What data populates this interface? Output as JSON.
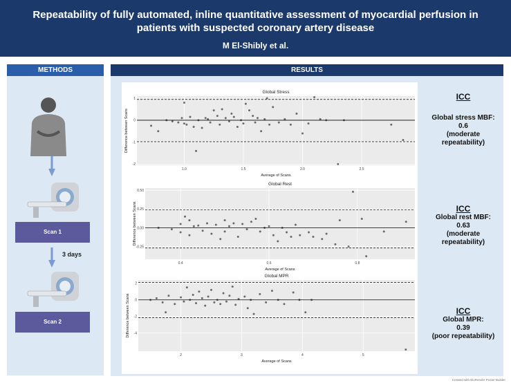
{
  "header": {
    "title": "Repeatability of fully automated, inline quantitative assessment of myocardial perfusion in patients with suspected coronary artery disease",
    "authors": "M El-Shibly et al."
  },
  "methods": {
    "heading": "METHODS",
    "scan1_label": "Scan 1",
    "interval_label": "3 days",
    "scan2_label": "Scan 2"
  },
  "results": {
    "heading": "RESULTS"
  },
  "icc": [
    {
      "heading": "ICC",
      "measure": "Global stress MBF:",
      "value": "0.6",
      "interpretation": "(moderate repeatability)"
    },
    {
      "heading": "ICC",
      "measure": "Global rest MBF:",
      "value": "0.63",
      "interpretation": "(moderate repeatability)"
    },
    {
      "heading": "ICC",
      "measure": "Global MPR:",
      "value": "0.39",
      "interpretation": "(poor repeatability)"
    }
  ],
  "chart_data": [
    {
      "type": "scatter",
      "title": "Global Stress",
      "xlabel": "Average of Scans",
      "ylabel": "Difference between Scans",
      "xlim": [
        0.6,
        2.95
      ],
      "ylim": [
        -2.05,
        1.1
      ],
      "xticks": [
        1.0,
        1.5,
        2.0,
        2.5
      ],
      "xtick_labels": [
        "1.0",
        "1.5",
        "2.0",
        "2.5"
      ],
      "yticks": [
        -2,
        -1,
        0,
        1
      ],
      "ytick_labels": [
        "-2",
        "-1",
        "0",
        "1"
      ],
      "mean_line": 0,
      "limits_of_agreement": [
        0.95,
        -0.98
      ],
      "points": [
        [
          0.72,
          -0.25
        ],
        [
          0.78,
          -0.5
        ],
        [
          0.85,
          0.0
        ],
        [
          0.9,
          -0.05
        ],
        [
          0.95,
          -0.1
        ],
        [
          0.98,
          0.1
        ],
        [
          1.0,
          0.8
        ],
        [
          1.0,
          -0.15
        ],
        [
          1.02,
          -0.2
        ],
        [
          1.05,
          0.15
        ],
        [
          1.08,
          -0.3
        ],
        [
          1.1,
          -1.4
        ],
        [
          1.12,
          0.0
        ],
        [
          1.15,
          -0.35
        ],
        [
          1.18,
          0.1
        ],
        [
          1.2,
          0.05
        ],
        [
          1.22,
          -0.1
        ],
        [
          1.25,
          0.45
        ],
        [
          1.28,
          0.2
        ],
        [
          1.3,
          -0.2
        ],
        [
          1.32,
          0.5
        ],
        [
          1.35,
          0.1
        ],
        [
          1.38,
          -0.05
        ],
        [
          1.4,
          0.3
        ],
        [
          1.42,
          0.15
        ],
        [
          1.45,
          -0.3
        ],
        [
          1.48,
          0.0
        ],
        [
          1.5,
          -0.15
        ],
        [
          1.52,
          0.75
        ],
        [
          1.55,
          0.45
        ],
        [
          1.58,
          0.2
        ],
        [
          1.6,
          -0.1
        ],
        [
          1.62,
          0.1
        ],
        [
          1.65,
          -0.5
        ],
        [
          1.68,
          0.05
        ],
        [
          1.7,
          1.0
        ],
        [
          1.72,
          -0.2
        ],
        [
          1.75,
          0.6
        ],
        [
          1.8,
          -0.1
        ],
        [
          1.85,
          0.05
        ],
        [
          1.9,
          -0.2
        ],
        [
          1.95,
          0.3
        ],
        [
          2.0,
          -0.6
        ],
        [
          2.05,
          -0.15
        ],
        [
          2.1,
          1.05
        ],
        [
          2.15,
          0.05
        ],
        [
          2.2,
          0.0
        ],
        [
          2.3,
          -2.0
        ],
        [
          2.35,
          0.0
        ],
        [
          2.75,
          -0.2
        ],
        [
          2.85,
          -0.9
        ]
      ]
    },
    {
      "type": "scatter",
      "title": "Global Rest",
      "xlabel": "Average of Scans",
      "ylabel": "Difference between Scans",
      "xlim": [
        0.32,
        0.93
      ],
      "ylim": [
        -0.42,
        0.53
      ],
      "xticks": [
        0.4,
        0.6,
        0.8
      ],
      "xtick_labels": [
        "0.4",
        "0.6",
        "0.8"
      ],
      "yticks": [
        -0.25,
        0.0,
        0.25,
        0.5
      ],
      "ytick_labels": [
        "-0.25",
        "0.00",
        "0.25",
        "0.50"
      ],
      "mean_line": 0,
      "limits_of_agreement": [
        0.24,
        -0.27
      ],
      "points": [
        [
          0.35,
          0.0
        ],
        [
          0.38,
          -0.02
        ],
        [
          0.4,
          0.05
        ],
        [
          0.4,
          -0.06
        ],
        [
          0.41,
          0.15
        ],
        [
          0.42,
          0.1
        ],
        [
          0.42,
          -0.1
        ],
        [
          0.43,
          0.02
        ],
        [
          0.44,
          0.03
        ],
        [
          0.45,
          -0.04
        ],
        [
          0.46,
          0.06
        ],
        [
          0.47,
          -0.08
        ],
        [
          0.48,
          0.04
        ],
        [
          0.49,
          -0.15
        ],
        [
          0.5,
          0.1
        ],
        [
          0.5,
          -0.05
        ],
        [
          0.51,
          0.02
        ],
        [
          0.52,
          0.06
        ],
        [
          0.53,
          -0.12
        ],
        [
          0.54,
          0.05
        ],
        [
          0.55,
          -0.02
        ],
        [
          0.56,
          0.08
        ],
        [
          0.57,
          0.12
        ],
        [
          0.58,
          -0.05
        ],
        [
          0.59,
          0.0
        ],
        [
          0.6,
          0.02
        ],
        [
          0.61,
          -0.1
        ],
        [
          0.62,
          -0.18
        ],
        [
          0.63,
          0.0
        ],
        [
          0.64,
          -0.06
        ],
        [
          0.65,
          -0.12
        ],
        [
          0.66,
          0.04
        ],
        [
          0.67,
          -0.1
        ],
        [
          0.69,
          -0.06
        ],
        [
          0.7,
          -0.12
        ],
        [
          0.72,
          -0.15
        ],
        [
          0.73,
          -0.08
        ],
        [
          0.75,
          -0.22
        ],
        [
          0.76,
          0.1
        ],
        [
          0.78,
          -0.25
        ],
        [
          0.79,
          0.48
        ],
        [
          0.81,
          0.12
        ],
        [
          0.82,
          -0.38
        ],
        [
          0.86,
          -0.05
        ],
        [
          0.91,
          0.08
        ]
      ]
    },
    {
      "type": "scatter",
      "title": "Global MPR",
      "xlabel": "Average of Scans",
      "ylabel": "Difference between Scans",
      "xlim": [
        1.3,
        5.85
      ],
      "ylim": [
        -6.2,
        2.4
      ],
      "xticks": [
        2,
        3,
        4,
        5
      ],
      "xtick_labels": [
        "2",
        "3",
        "4",
        "5"
      ],
      "yticks": [
        -4,
        -2,
        0,
        2
      ],
      "ytick_labels": [
        "-4",
        "-2",
        "0",
        "2"
      ],
      "mean_line": 0,
      "limits_of_agreement": [
        2.1,
        -2.15
      ],
      "points": [
        [
          1.5,
          0.0
        ],
        [
          1.6,
          0.2
        ],
        [
          1.7,
          -0.3
        ],
        [
          1.75,
          -1.5
        ],
        [
          1.8,
          0.5
        ],
        [
          1.9,
          -0.5
        ],
        [
          2.0,
          0.3
        ],
        [
          2.05,
          -0.2
        ],
        [
          2.1,
          1.5
        ],
        [
          2.15,
          0.0
        ],
        [
          2.2,
          0.6
        ],
        [
          2.25,
          -0.4
        ],
        [
          2.3,
          1.0
        ],
        [
          2.35,
          0.2
        ],
        [
          2.4,
          -0.7
        ],
        [
          2.45,
          0.4
        ],
        [
          2.5,
          1.2
        ],
        [
          2.55,
          -0.3
        ],
        [
          2.6,
          0.0
        ],
        [
          2.65,
          -0.5
        ],
        [
          2.7,
          0.8
        ],
        [
          2.75,
          -0.2
        ],
        [
          2.8,
          0.5
        ],
        [
          2.85,
          1.6
        ],
        [
          2.9,
          -0.6
        ],
        [
          2.95,
          0.1
        ],
        [
          3.05,
          0.4
        ],
        [
          3.1,
          -1.0
        ],
        [
          3.15,
          0.0
        ],
        [
          3.2,
          -1.7
        ],
        [
          3.3,
          0.7
        ],
        [
          3.4,
          -0.3
        ],
        [
          3.5,
          1.1
        ],
        [
          3.6,
          0.0
        ],
        [
          3.7,
          -0.5
        ],
        [
          3.85,
          0.9
        ],
        [
          3.95,
          0.0
        ],
        [
          4.05,
          -1.5
        ],
        [
          4.15,
          0.0
        ],
        [
          5.7,
          -6.0
        ]
      ]
    }
  ],
  "credit": "Created with BioRender Poster Builder"
}
